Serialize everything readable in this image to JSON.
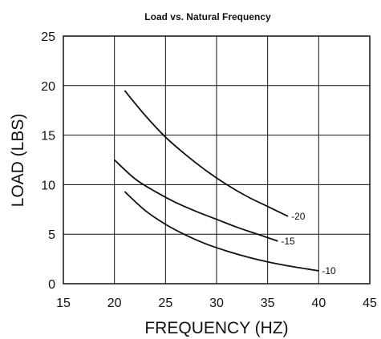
{
  "chart_data": {
    "type": "line",
    "title": "Load vs. Natural Frequency",
    "xlabel": "FREQUENCY (HZ)",
    "ylabel": "LOAD (LBS)",
    "xlim": [
      15,
      45
    ],
    "ylim": [
      0,
      25
    ],
    "xticks": [
      "15",
      "20",
      "25",
      "30",
      "35",
      "40",
      "45"
    ],
    "yticks": [
      "0",
      "5",
      "10",
      "15",
      "20",
      "25"
    ],
    "grid": true,
    "legend": "none",
    "line_color": "#111111",
    "series": [
      {
        "name": "-20",
        "x": [
          21,
          23,
          25,
          27,
          29,
          31,
          33,
          35,
          37
        ],
        "y": [
          19.5,
          17.0,
          14.8,
          13.0,
          11.4,
          10.0,
          8.8,
          7.8,
          6.8
        ]
      },
      {
        "name": "-15",
        "x": [
          20,
          22,
          24,
          26,
          28,
          30,
          32,
          34,
          36
        ],
        "y": [
          12.5,
          10.6,
          9.3,
          8.2,
          7.3,
          6.5,
          5.7,
          5.0,
          4.3
        ]
      },
      {
        "name": "-10",
        "x": [
          21,
          23,
          25,
          27,
          29,
          31,
          33,
          35,
          37,
          40
        ],
        "y": [
          9.3,
          7.4,
          6.0,
          4.9,
          4.0,
          3.3,
          2.7,
          2.2,
          1.8,
          1.3
        ]
      }
    ]
  }
}
